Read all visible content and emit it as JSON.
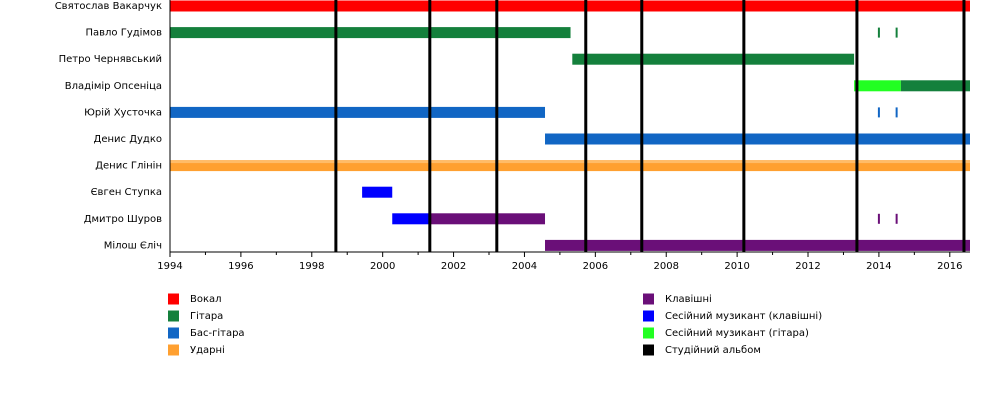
{
  "chart_data": {
    "type": "timeline",
    "categories": [
      "Святослав Вакарчук",
      "Павло Гудімов",
      "Петро Чернявський",
      "Владімір Опсеніца",
      "Юрій Хусточка",
      "Денис Дудко",
      "Денис Глінін",
      "Євген Ступка",
      "Дмитро Шуров",
      "Мілош Єліч"
    ],
    "roles": [
      {
        "name": "Вокал",
        "color": "#ff0000"
      },
      {
        "name": "Гітара",
        "color": "#14803c"
      },
      {
        "name": "Бас-гітара",
        "color": "#1166c4"
      },
      {
        "name": "Ударні",
        "color": "#ffa030"
      },
      {
        "name": "Клавішні",
        "color": "#6a0f78"
      },
      {
        "name": "Сесійний музикант (клавішні)",
        "color": "#0000ff"
      },
      {
        "name": "Сесійний музикант (гітара)",
        "color": "#22ff22"
      },
      {
        "name": "Студійний альбом",
        "color": "#000000"
      }
    ],
    "bars": [
      {
        "row": 0,
        "role": 0,
        "start": 1994,
        "end": 2016.57
      },
      {
        "row": 1,
        "role": 1,
        "start": 1994,
        "end": 2005.3
      },
      {
        "row": 2,
        "role": 1,
        "start": 2005.35,
        "end": 2013.3
      },
      {
        "row": 3,
        "role": 6,
        "start": 2013.3,
        "end": 2014.62
      },
      {
        "row": 3,
        "role": 1,
        "start": 2014.62,
        "end": 2016.57
      },
      {
        "row": 4,
        "role": 2,
        "start": 1994,
        "end": 2004.58
      },
      {
        "row": 5,
        "role": 2,
        "start": 2004.58,
        "end": 2016.57
      },
      {
        "row": 6,
        "role": 3,
        "start": 1994,
        "end": 2016.57
      },
      {
        "row": 7,
        "role": 5,
        "start": 1999.42,
        "end": 2000.27
      },
      {
        "row": 8,
        "role": 5,
        "start": 2000.27,
        "end": 2001.3
      },
      {
        "row": 8,
        "role": 4,
        "start": 2001.3,
        "end": 2004.58
      },
      {
        "row": 9,
        "role": 4,
        "start": 2004.58,
        "end": 2016.57
      }
    ],
    "markers": [
      {
        "row": 1,
        "role": 1,
        "x": 2014
      },
      {
        "row": 1,
        "role": 1,
        "x": 2014.5
      },
      {
        "row": 4,
        "role": 2,
        "x": 2014
      },
      {
        "row": 4,
        "role": 2,
        "x": 2014.5
      },
      {
        "row": 8,
        "role": 4,
        "x": 2014
      },
      {
        "row": 8,
        "role": 4,
        "x": 2014.5
      }
    ],
    "albums": [
      1998.68,
      2001.33,
      2003.22,
      2005.73,
      2007.31,
      2010.19,
      2013.38,
      2016.4
    ],
    "album_role": 7,
    "xlim": [
      1994,
      2016.57
    ],
    "xticks": [
      1994,
      1996,
      1998,
      2000,
      2002,
      2004,
      2006,
      2008,
      2010,
      2012,
      2014,
      2016
    ],
    "xminorticks": [
      1995,
      1997,
      1999,
      2001,
      2003,
      2005,
      2007,
      2009,
      2011,
      2013,
      2015
    ]
  }
}
